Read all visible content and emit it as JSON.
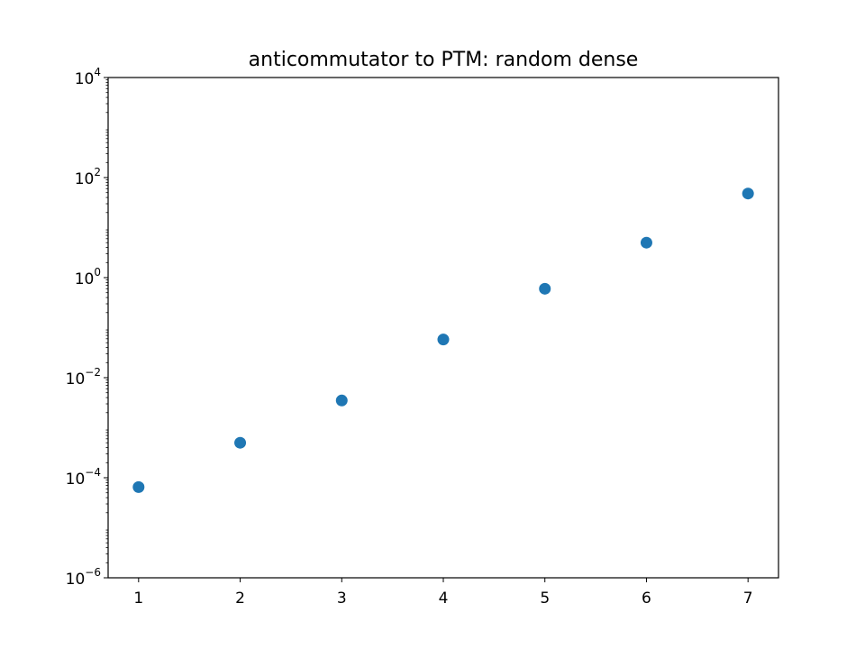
{
  "chart_data": {
    "type": "scatter",
    "title": "anticommutator to PTM: random dense",
    "xlabel": "",
    "ylabel": "",
    "x_ticks": [
      1,
      2,
      3,
      4,
      5,
      6,
      7
    ],
    "x_tick_labels": [
      "1",
      "2",
      "3",
      "4",
      "5",
      "6",
      "7"
    ],
    "xlim": [
      0.7,
      7.3
    ],
    "y_scale": "log",
    "ylim": [
      1e-06,
      10000.0
    ],
    "y_tick_exponents": [
      -6,
      -4,
      -2,
      0,
      2,
      4
    ],
    "y_tick_labels": [
      {
        "base": "10",
        "exp": "−6"
      },
      {
        "base": "10",
        "exp": "−4"
      },
      {
        "base": "10",
        "exp": "−2"
      },
      {
        "base": "10",
        "exp": "0"
      },
      {
        "base": "10",
        "exp": "2"
      },
      {
        "base": "10",
        "exp": "4"
      }
    ],
    "grid": false,
    "legend": "none",
    "marker_color": "#1f77b4",
    "series": [
      {
        "x": [
          1,
          2,
          3,
          4,
          5,
          6,
          7
        ],
        "values": [
          6.5e-05,
          0.0005,
          0.0035,
          0.058,
          0.6,
          5.0,
          48
        ]
      }
    ]
  }
}
